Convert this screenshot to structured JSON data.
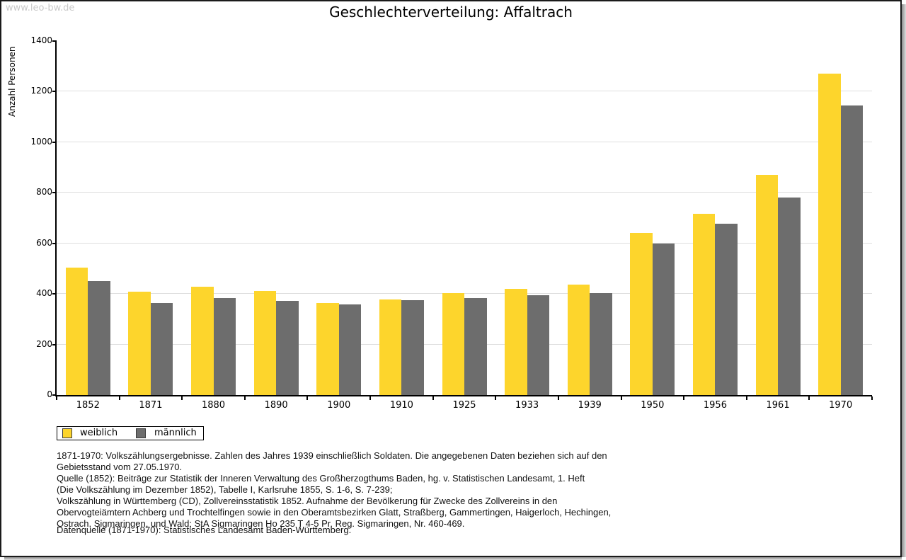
{
  "page": {
    "watermark": "www.leo-bw.de",
    "title": "Geschlechterverteilung: Affaltrach"
  },
  "chart_data": {
    "type": "bar",
    "title": "Geschlechterverteilung: Affaltrach",
    "xlabel": "",
    "ylabel": "Anzahl Personen",
    "ylim": [
      0,
      1400
    ],
    "ytick_step": 200,
    "grid": true,
    "legend_position": "bottom-left",
    "categories": [
      "1852",
      "1871",
      "1880",
      "1890",
      "1900",
      "1910",
      "1925",
      "1933",
      "1939",
      "1950",
      "1956",
      "1961",
      "1970"
    ],
    "series": [
      {
        "name": "weiblich",
        "color": "#FDD52C",
        "values": [
          505,
          408,
          428,
          411,
          363,
          377,
          403,
          419,
          437,
          640,
          718,
          872,
          1272
        ]
      },
      {
        "name": "männlich",
        "color": "#6D6D6D",
        "values": [
          450,
          364,
          384,
          372,
          358,
          375,
          384,
          395,
          403,
          598,
          678,
          780,
          1144
        ]
      }
    ]
  },
  "colors": {
    "female_bar": "#FDD52C",
    "male_bar": "#6D6D6D",
    "gridline": "#DEDEDE",
    "watermark": "#C9C9C9",
    "frame_border": "#1A1A1A"
  },
  "footnotes": {
    "source_lines": [
      "1871-1970: Volkszählungsergebnisse. Zahlen des Jahres 1939 einschließlich Soldaten. Die angegebenen Daten beziehen sich auf den",
      "Gebietsstand vom 27.05.1970.",
      "Quelle (1852): Beiträge zur Statistik der Inneren Verwaltung des Großherzogthums Baden, hg. v. Statistischen Landesamt, 1. Heft",
      "(Die Volkszählung im Dezember 1852), Tabelle I, Karlsruhe 1855, S. 1-6, S. 7-239;",
      "Volkszählung in Württemberg (CD), Zollvereinsstatistik 1852. Aufnahme der Bevölkerung für Zwecke des Zollvereins in den",
      "Obervogteiämtern Achberg und Trochtelfingen sowie in den Oberamtsbezirken Glatt, Straßberg, Gammertingen, Haigerloch, Hechingen,",
      "Ostrach, Sigmaringen, und Wald; StA Sigmaringen Ho 235 T 4-5 Pr. Reg. Sigmaringen, Nr. 460-469."
    ],
    "data_source": "Datenquelle (1871-1970): Statistisches Landesamt Baden-Württemberg."
  }
}
